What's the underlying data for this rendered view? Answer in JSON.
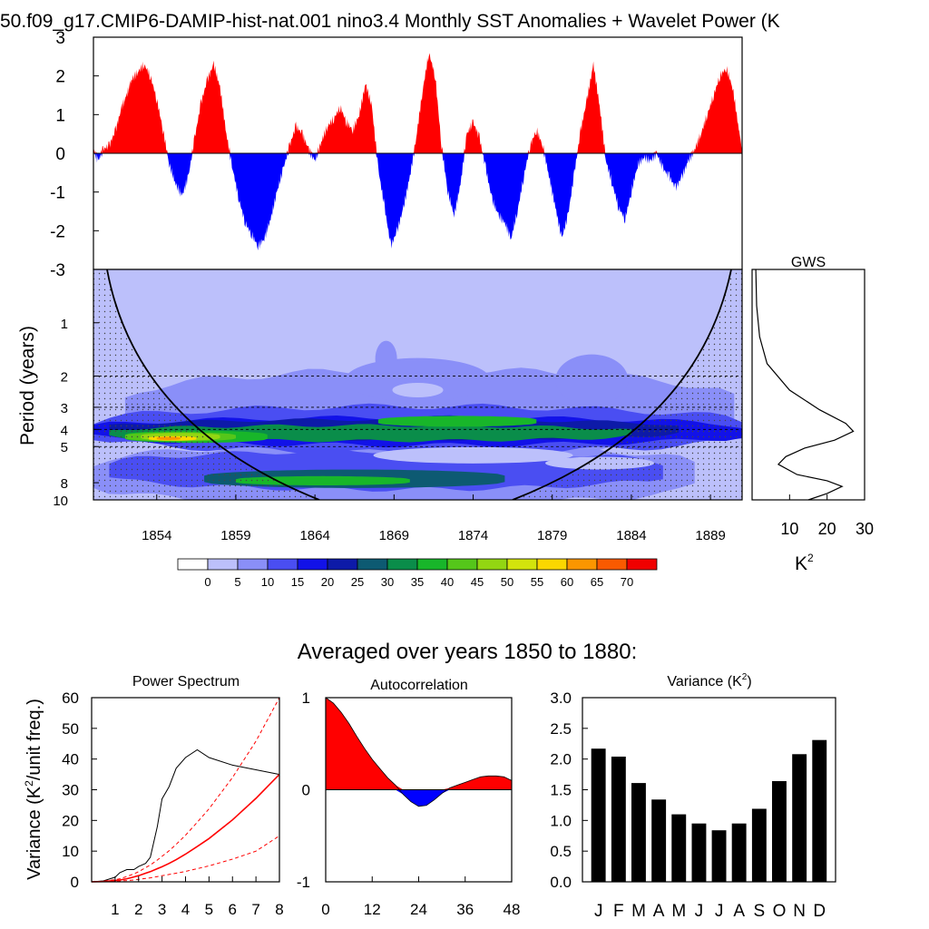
{
  "title": "50.f09_g17.CMIP6-DAMIP-hist-nat.001 nino3.4 Monthly SST Anomalies + Wavelet Power (K",
  "timeseries": {
    "yticks": [
      "3",
      "2",
      "1",
      "0",
      "-1",
      "-2",
      "-3"
    ]
  },
  "wavelet": {
    "ylabel": "Period (years)",
    "yticks": [
      "1",
      "2",
      "3",
      "4",
      "5",
      "8",
      "10"
    ],
    "xticks": [
      "1854",
      "1859",
      "1864",
      "1869",
      "1874",
      "1879",
      "1884",
      "1889"
    ]
  },
  "gws": {
    "title": "GWS",
    "xticks": [
      "10",
      "20",
      "30"
    ],
    "unit": "K",
    "unit_sup": "2"
  },
  "colorbar": {
    "labels": [
      "0",
      "5",
      "10",
      "15",
      "20",
      "25",
      "30",
      "35",
      "40",
      "45",
      "50",
      "55",
      "60",
      "65",
      "70"
    ],
    "colors": [
      "#ffffff",
      "#bcc0fb",
      "#8a8ff8",
      "#4a4ef2",
      "#1212e8",
      "#0d1aa8",
      "#0d5a72",
      "#0a8d4a",
      "#18b62a",
      "#55c61a",
      "#93d612",
      "#d3e40c",
      "#fbd700",
      "#fb9600",
      "#fa5a00",
      "#f00000"
    ]
  },
  "section_title": "Averaged over years 1850 to 1880:",
  "power": {
    "title": "Power Spectrum",
    "ylabel_prefix": "Variance (K",
    "ylabel_sup": "2",
    "ylabel_suffix": "/unit freq.)",
    "yticks": [
      "60",
      "50",
      "40",
      "30",
      "20",
      "10",
      "0"
    ],
    "xticks": [
      "1",
      "2",
      "3",
      "4",
      "5",
      "6",
      "7",
      "8"
    ]
  },
  "autocorr": {
    "title": "Autocorrelation",
    "yticks": [
      "1",
      "0",
      "-1"
    ],
    "xticks": [
      "0",
      "12",
      "24",
      "36",
      "48"
    ]
  },
  "variance": {
    "title_prefix": "Variance (K",
    "title_sup": "2",
    "title_suffix": ")",
    "yticks": [
      "3.0",
      "2.5",
      "2.0",
      "1.5",
      "1.0",
      "0.5",
      "0.0"
    ]
  },
  "chart_data": [
    {
      "type": "area",
      "name": "nino3.4 monthly SST anomalies",
      "xlim": [
        1850,
        1891
      ],
      "ylim": [
        -3,
        3
      ],
      "positive_color": "#ff0000",
      "negative_color": "#0000ff",
      "x": [
        1850.0,
        1850.3,
        1850.6,
        1851.0,
        1851.4,
        1851.8,
        1852.1,
        1852.4,
        1852.8,
        1853.2,
        1853.6,
        1854.0,
        1854.4,
        1854.8,
        1855.2,
        1855.6,
        1856.0,
        1856.4,
        1856.8,
        1857.2,
        1857.6,
        1858.0,
        1858.4,
        1858.8,
        1859.2,
        1859.6,
        1860.0,
        1860.4,
        1860.8,
        1861.2,
        1861.6,
        1862.0,
        1862.4,
        1862.8,
        1863.2,
        1863.6,
        1864.0,
        1864.4,
        1864.8,
        1865.2,
        1865.6,
        1866.0,
        1866.4,
        1866.8,
        1867.2,
        1867.6,
        1868.0,
        1868.4,
        1868.8,
        1869.2,
        1869.6,
        1870.0,
        1870.4,
        1870.8,
        1871.2,
        1871.6,
        1872.0,
        1872.4,
        1872.8,
        1873.2,
        1873.6,
        1874.0,
        1874.4,
        1874.8,
        1875.2,
        1875.6,
        1876.0,
        1876.4,
        1876.8,
        1877.2,
        1877.6,
        1878.0,
        1878.4,
        1878.8,
        1879.2,
        1879.6,
        1880.0,
        1880.4,
        1880.8,
        1881.2,
        1881.6,
        1882.0,
        1882.4,
        1882.8,
        1883.2,
        1883.6,
        1884.0,
        1884.4,
        1884.8,
        1885.2,
        1885.6,
        1886.0,
        1886.4,
        1886.8,
        1887.2,
        1887.6,
        1888.0,
        1888.4,
        1888.8,
        1889.2,
        1889.6,
        1890.0,
        1890.4,
        1890.8,
        1891.0
      ],
      "y": [
        0.1,
        -0.2,
        0.1,
        0.2,
        0.6,
        1.2,
        1.5,
        1.9,
        2.1,
        2.3,
        2.0,
        1.4,
        0.6,
        -0.3,
        -0.8,
        -1.1,
        -0.6,
        0.4,
        1.3,
        1.9,
        2.3,
        1.7,
        0.5,
        -0.4,
        -1.2,
        -1.8,
        -2.1,
        -2.4,
        -2.2,
        -1.7,
        -1.0,
        -0.4,
        0.2,
        0.7,
        0.5,
        0.1,
        -0.2,
        0.3,
        0.7,
        0.9,
        1.2,
        0.8,
        0.6,
        1.0,
        1.8,
        1.2,
        -0.4,
        -1.4,
        -2.4,
        -2.0,
        -1.4,
        -0.6,
        0.4,
        1.6,
        2.6,
        2.0,
        0.2,
        -1.0,
        -1.6,
        -0.8,
        0.5,
        0.8,
        0.4,
        -0.4,
        -1.2,
        -1.6,
        -1.8,
        -2.2,
        -1.5,
        -0.6,
        0.2,
        0.6,
        0.2,
        -0.6,
        -1.4,
        -2.2,
        -1.6,
        -0.5,
        0.6,
        1.4,
        2.3,
        1.2,
        -0.2,
        -0.8,
        -1.4,
        -1.7,
        -1.0,
        -0.3,
        -0.1,
        -0.2,
        0.0,
        -0.4,
        -0.6,
        -0.9,
        -0.6,
        -0.2,
        0.1,
        0.5,
        1.0,
        1.5,
        2.0,
        2.2,
        1.7,
        0.6,
        0.1
      ]
    },
    {
      "type": "heatmap",
      "name": "Wavelet Power",
      "xlim": [
        1850,
        1891
      ],
      "ylim": [
        0.5,
        10
      ],
      "yscale": "log",
      "period_gridlines": [
        2,
        3,
        4,
        5
      ],
      "levels": [
        0,
        5,
        10,
        15,
        20,
        25,
        30,
        35,
        40,
        45,
        50,
        55,
        60,
        65,
        70
      ],
      "colorbar_placement": "bottom",
      "cone_of_influence": true
    },
    {
      "type": "line",
      "name": "GWS",
      "x": [
        1,
        1.2,
        2,
        4,
        10,
        18,
        25,
        27,
        22,
        14,
        9,
        7,
        12,
        20,
        24,
        20,
        15
      ],
      "y": [
        0.5,
        0.8,
        1.2,
        1.7,
        2.4,
        3.1,
        3.7,
        4.1,
        4.6,
        5.1,
        5.7,
        6.3,
        7.2,
        7.8,
        8.4,
        9.2,
        10
      ],
      "xlim": [
        0,
        30
      ],
      "ylim": [
        0.5,
        10
      ],
      "yscale": "log"
    },
    {
      "type": "line",
      "title": "Power Spectrum",
      "x": [
        0,
        0.5,
        1,
        1.2,
        1.5,
        1.8,
        2,
        2.3,
        2.5,
        2.8,
        3,
        3.3,
        3.6,
        4,
        4.5,
        5,
        6,
        7,
        8
      ],
      "series": [
        {
          "color": "#000000",
          "style": "solid",
          "values": [
            0,
            0.3,
            1.5,
            3,
            4,
            4,
            5,
            6,
            8,
            18,
            27,
            31,
            37,
            40.5,
            43,
            40.5,
            38,
            36.5,
            35
          ]
        },
        {
          "color": "#ff0000",
          "style": "solid",
          "values": [
            0,
            0.1,
            0.4,
            0.6,
            1.0,
            1.6,
            2.0,
            2.8,
            3.3,
            4.3,
            4.9,
            6.0,
            7.2,
            9.0,
            11.5,
            14.1,
            20.2,
            27.2,
            35
          ]
        },
        {
          "color": "#ff0000",
          "style": "dashed",
          "values": [
            0,
            0.2,
            0.7,
            1.0,
            1.7,
            2.6,
            3.3,
            4.6,
            5.5,
            7.1,
            8.3,
            10.1,
            12.2,
            15.2,
            19.4,
            23.8,
            34.0,
            45.8,
            60
          ]
        },
        {
          "color": "#ff0000",
          "style": "dashed",
          "values": [
            0,
            0.05,
            0.2,
            0.3,
            0.4,
            0.6,
            0.8,
            1.1,
            1.3,
            1.7,
            2.0,
            2.4,
            2.8,
            3.4,
            4.3,
            5.2,
            7.4,
            10.0,
            15
          ]
        }
      ],
      "ylabel": "Variance (K2/unit freq.)",
      "xlim": [
        0,
        8
      ],
      "ylim": [
        0,
        60
      ]
    },
    {
      "type": "area",
      "title": "Autocorrelation",
      "x": [
        0,
        2,
        4,
        6,
        8,
        10,
        12,
        14,
        16,
        18,
        20,
        22,
        24,
        26,
        28,
        30,
        32,
        34,
        36,
        38,
        40,
        42,
        44,
        46,
        48
      ],
      "y": [
        1.0,
        0.94,
        0.84,
        0.72,
        0.58,
        0.45,
        0.33,
        0.23,
        0.13,
        0.05,
        -0.05,
        -0.13,
        -0.18,
        -0.17,
        -0.11,
        -0.04,
        0.02,
        0.05,
        0.08,
        0.11,
        0.14,
        0.15,
        0.15,
        0.14,
        0.1
      ],
      "positive_color": "#ff0000",
      "negative_color": "#0000ff",
      "xlim": [
        0,
        48
      ],
      "ylim": [
        -1,
        1
      ]
    },
    {
      "type": "bar",
      "title": "Variance (K2)",
      "categories": [
        "J",
        "F",
        "M",
        "A",
        "M",
        "J",
        "J",
        "A",
        "S",
        "O",
        "N",
        "D"
      ],
      "values": [
        2.17,
        2.04,
        1.61,
        1.34,
        1.1,
        0.95,
        0.84,
        0.95,
        1.19,
        1.64,
        2.08,
        2.31
      ],
      "color": "#000000",
      "ylim": [
        0,
        3
      ]
    }
  ]
}
